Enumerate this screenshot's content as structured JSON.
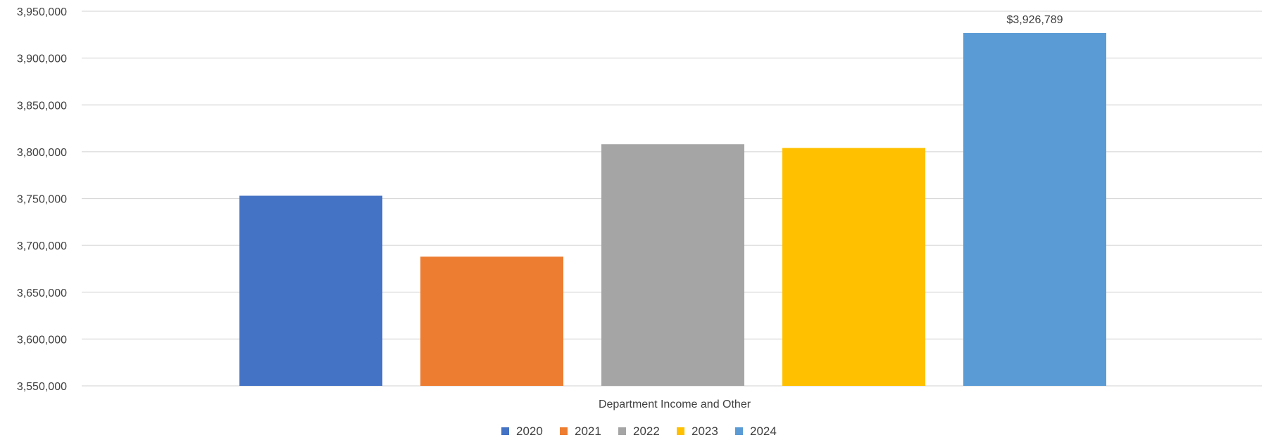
{
  "chart_data": {
    "type": "bar",
    "title": "",
    "xlabel": "",
    "ylabel": "",
    "categories": [
      "Department Income and Other"
    ],
    "category_label": "Department Income and Other",
    "ylim": [
      3550000,
      3950000
    ],
    "y_ticks": [
      3550000,
      3600000,
      3650000,
      3700000,
      3750000,
      3800000,
      3850000,
      3900000,
      3950000
    ],
    "y_tick_labels": [
      "3,550,000",
      "3,600,000",
      "3,650,000",
      "3,700,000",
      "3,750,000",
      "3,800,000",
      "3,850,000",
      "3,900,000",
      "3,950,000"
    ],
    "grid": true,
    "legend_position": "bottom-center",
    "series": [
      {
        "name": "2020",
        "color": "#4472C4",
        "values": [
          3753000
        ]
      },
      {
        "name": "2021",
        "color": "#ED7D31",
        "values": [
          3688000
        ]
      },
      {
        "name": "2022",
        "color": "#A5A5A5",
        "values": [
          3808000
        ]
      },
      {
        "name": "2023",
        "color": "#FFC000",
        "values": [
          3804000
        ]
      },
      {
        "name": "2024",
        "color": "#5B9BD5",
        "values": [
          3926789
        ],
        "data_label": "$3,926,789"
      }
    ]
  }
}
